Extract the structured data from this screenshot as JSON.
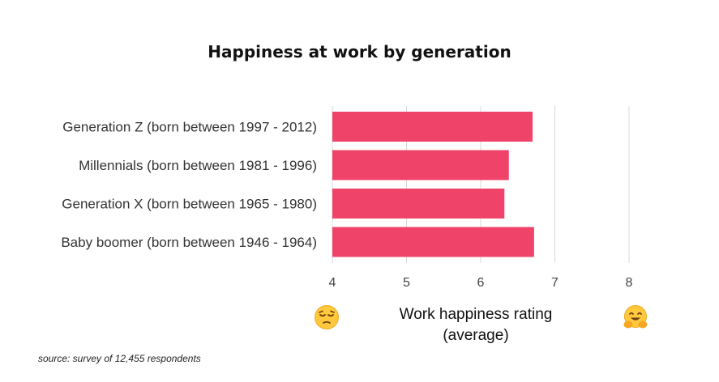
{
  "title": "Happiness at work by generation",
  "source": "source: survey of 12,455 respondents",
  "colors": {
    "bar": "#f0436a",
    "grid": "#d9d9d9"
  },
  "icons": {
    "left": "sad-face-icon",
    "right": "hugging-face-icon"
  },
  "chart_data": {
    "type": "bar",
    "orientation": "horizontal",
    "title": "Happiness at work by generation",
    "xlabel": "Work happiness rating (average)",
    "xlabel_lines": [
      "Work happiness rating",
      "(average)"
    ],
    "categories": [
      "Generation Z (born between 1997 - 2012)",
      "Millennials (born between 1981 - 1996)",
      "Generation X (born between 1965 - 1980)",
      "Baby boomer (born between 1946 - 1964)"
    ],
    "values": [
      6.7,
      6.38,
      6.32,
      6.72
    ],
    "xlim": [
      4,
      8
    ],
    "xticks": [
      "4",
      "5",
      "6",
      "7",
      "8"
    ],
    "grid": true
  }
}
